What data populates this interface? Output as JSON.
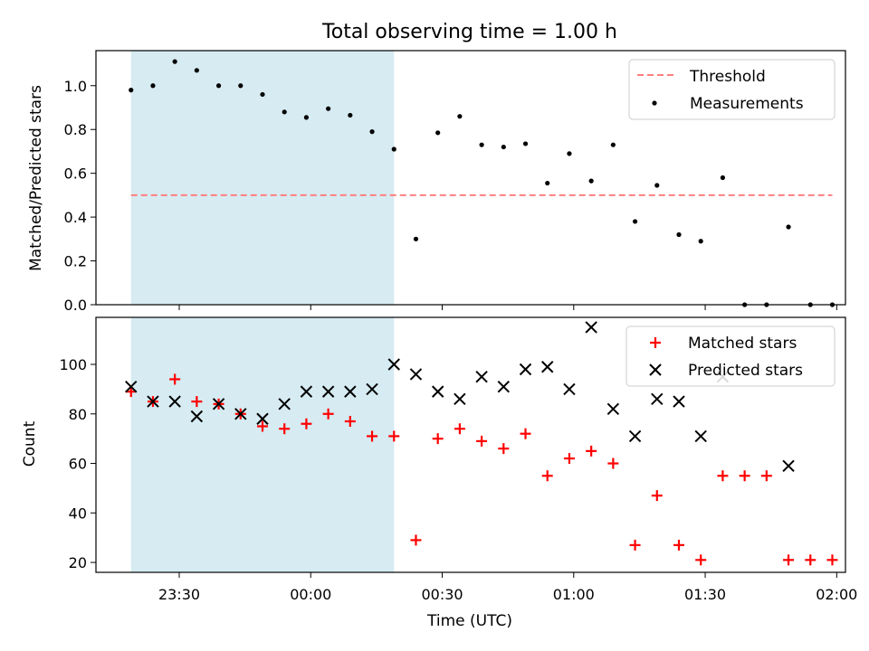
{
  "colors": {
    "shade": "#add8e6",
    "threshold": "#ff7f7f",
    "measurement": "#000000",
    "matched": "#ff0000",
    "predicted": "#000000"
  },
  "chart_data": [
    {
      "type": "scatter",
      "title": "Total observing time = 1.00 h",
      "ylabel": "Matched/Predicted stars",
      "xlabel": "",
      "xlim": [
        "23:11",
        "02:02"
      ],
      "ylim": [
        0,
        1.16
      ],
      "yticks": [
        0.0,
        0.2,
        0.4,
        0.6,
        0.8,
        1.0
      ],
      "ytick_labels": [
        "0.0",
        "0.2",
        "0.4",
        "0.6",
        "0.8",
        "1.0"
      ],
      "xticks": [
        "23:30",
        "00:00",
        "00:30",
        "01:00",
        "01:30",
        "02:00"
      ],
      "shaded_range": [
        "23:19",
        "00:19"
      ],
      "legend": {
        "position": "top-right",
        "entries": [
          "Threshold",
          "Measurements"
        ]
      },
      "threshold": {
        "name": "Threshold",
        "value": 0.5,
        "x_range": [
          "23:19",
          "01:59"
        ]
      },
      "series": [
        {
          "name": "Measurements",
          "x": [
            "23:19",
            "23:24",
            "23:29",
            "23:34",
            "23:39",
            "23:44",
            "23:49",
            "23:54",
            "23:59",
            "00:04",
            "00:09",
            "00:14",
            "00:19",
            "00:24",
            "00:29",
            "00:34",
            "00:39",
            "00:44",
            "00:49",
            "00:54",
            "00:59",
            "01:04",
            "01:09",
            "01:14",
            "01:19",
            "01:24",
            "01:29",
            "01:34",
            "01:39",
            "01:44",
            "01:49",
            "01:54",
            "01:59"
          ],
          "y": [
            0.98,
            1.0,
            1.11,
            1.07,
            1.0,
            1.0,
            0.96,
            0.88,
            0.855,
            0.895,
            0.865,
            0.79,
            0.71,
            0.3,
            0.785,
            0.86,
            0.73,
            0.72,
            0.735,
            0.555,
            0.69,
            0.565,
            0.73,
            0.38,
            0.545,
            0.32,
            0.29,
            0.58,
            0.0,
            0.0,
            0.355,
            0.0,
            0.0
          ]
        }
      ]
    },
    {
      "type": "scatter",
      "title": "",
      "ylabel": "Count",
      "xlabel": "Time (UTC)",
      "xlim": [
        "23:11",
        "02:02"
      ],
      "ylim": [
        16,
        119
      ],
      "yticks": [
        20,
        40,
        60,
        80,
        100
      ],
      "ytick_labels": [
        "20",
        "40",
        "60",
        "80",
        "100"
      ],
      "xticks": [
        "23:30",
        "00:00",
        "00:30",
        "01:00",
        "01:30",
        "02:00"
      ],
      "shaded_range": [
        "23:19",
        "00:19"
      ],
      "legend": {
        "position": "top-right",
        "entries": [
          "Matched stars",
          "Predicted stars"
        ]
      },
      "series": [
        {
          "name": "Matched stars",
          "marker": "plus",
          "x": [
            "23:19",
            "23:24",
            "23:29",
            "23:34",
            "23:39",
            "23:44",
            "23:49",
            "23:54",
            "23:59",
            "00:04",
            "00:09",
            "00:14",
            "00:19",
            "00:24",
            "00:29",
            "00:34",
            "00:39",
            "00:44",
            "00:49",
            "00:54",
            "00:59",
            "01:04",
            "01:09",
            "01:14",
            "01:19",
            "01:24",
            "01:29",
            "01:34",
            "01:39",
            "01:44",
            "01:49",
            "01:54",
            "01:59"
          ],
          "y": [
            89,
            85,
            94,
            85,
            84,
            80,
            75,
            74,
            76,
            80,
            77,
            71,
            71,
            29,
            70,
            74,
            69,
            66,
            72,
            55,
            62,
            65,
            60,
            27,
            47,
            27,
            21,
            55,
            55,
            55,
            21,
            21,
            21
          ]
        },
        {
          "name": "Predicted stars",
          "marker": "x",
          "x": [
            "23:19",
            "23:24",
            "23:29",
            "23:34",
            "23:39",
            "23:44",
            "23:49",
            "23:54",
            "23:59",
            "00:04",
            "00:09",
            "00:14",
            "00:19",
            "00:24",
            "00:29",
            "00:34",
            "00:39",
            "00:44",
            "00:49",
            "00:54",
            "00:59",
            "01:04",
            "01:09",
            "01:14",
            "01:19",
            "01:24",
            "01:29",
            "01:34",
            "01:49"
          ],
          "y": [
            91,
            85,
            85,
            79,
            84,
            80,
            78,
            84,
            89,
            89,
            89,
            90,
            100,
            96,
            89,
            86,
            95,
            91,
            98,
            99,
            90,
            115,
            82,
            71,
            86,
            85,
            71,
            95,
            59
          ]
        }
      ]
    }
  ]
}
